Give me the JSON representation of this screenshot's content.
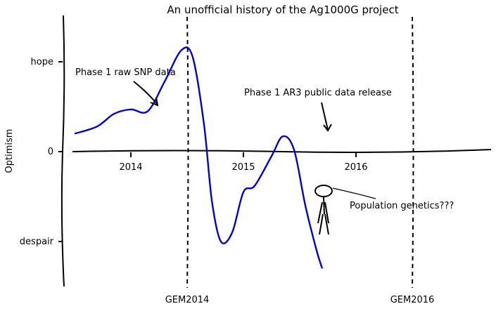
{
  "chart_data": {
    "type": "line",
    "title": "An unofficial history of the Ag1000G project",
    "ylabel": "Optimism",
    "xlabel": "",
    "xlim": [
      2013.5,
      2017.2
    ],
    "ylim": [
      -1.5,
      1.5
    ],
    "x_ticks": [
      {
        "value": 2014,
        "label": "2014"
      },
      {
        "value": 2015,
        "label": "2015"
      },
      {
        "value": 2016,
        "label": "2016"
      }
    ],
    "y_ticks": [
      {
        "value": 1,
        "label": "hope"
      },
      {
        "value": 0,
        "label": "0"
      },
      {
        "value": -1,
        "label": "despair"
      }
    ],
    "grid": false,
    "series": [
      {
        "color": "#0000dd",
        "x": [
          2013.5,
          2013.7,
          2013.85,
          2014.0,
          2014.15,
          2014.3,
          2014.45,
          2014.55,
          2014.65,
          2014.72,
          2014.8,
          2014.9,
          2015.0,
          2015.1,
          2015.25,
          2015.35,
          2015.45,
          2015.55,
          2015.65,
          2015.7
        ],
        "y": [
          0.2,
          0.28,
          0.42,
          0.47,
          0.45,
          0.78,
          1.13,
          1.05,
          0.3,
          -0.55,
          -1.0,
          -0.9,
          -0.45,
          -0.38,
          -0.05,
          0.17,
          0.02,
          -0.6,
          -1.1,
          -1.3
        ]
      }
    ],
    "vlines": [
      {
        "x": 2014.5,
        "label": "GEM2014",
        "style": "dashed"
      },
      {
        "x": 2016.5,
        "label": "GEM2016",
        "style": "dashed"
      }
    ],
    "annotations": [
      {
        "text": "Phase 1 raw SNP data",
        "x": 2014.15,
        "y": 0.5
      },
      {
        "text": "Phase 1 AR3 public data release",
        "x": 2015.5,
        "y": 0.22
      },
      {
        "text": "Population genetics???",
        "x": 2015.6,
        "y": -0.7
      }
    ]
  },
  "colors": {
    "series": "#0000dd",
    "axes": "#000000"
  }
}
